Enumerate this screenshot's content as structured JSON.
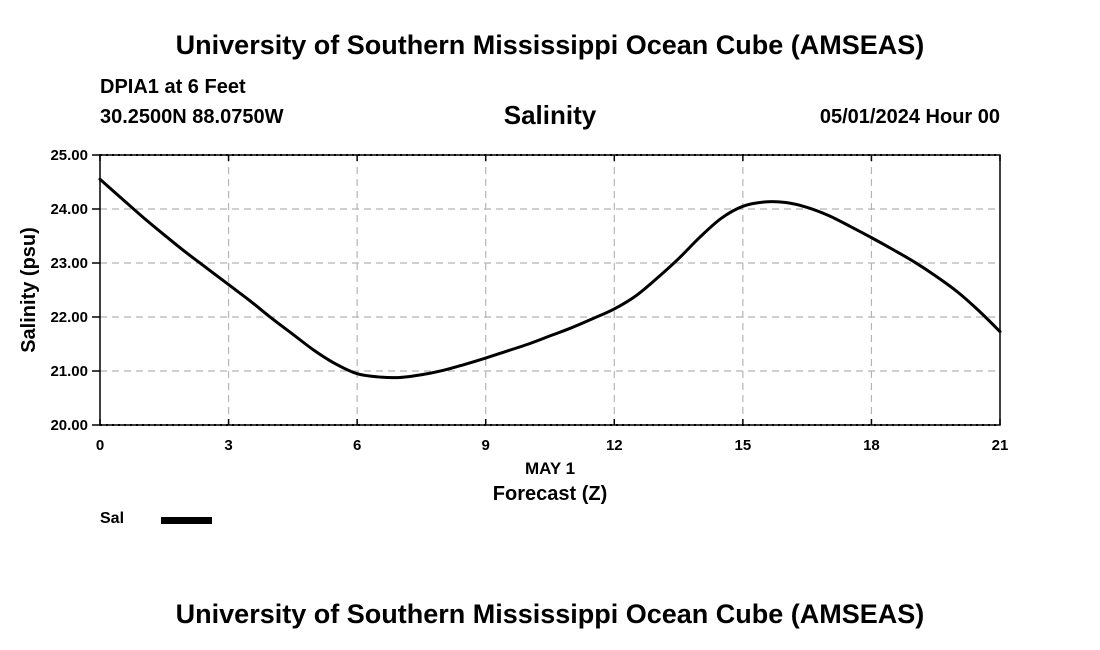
{
  "header": {
    "title": "University of Southern Mississippi Ocean Cube (AMSEAS)",
    "station": "DPIA1 at 6 Feet",
    "coordinates": "30.2500N  88.0750W",
    "parameter": "Salinity",
    "datetime": "05/01/2024 Hour 00"
  },
  "footer": {
    "title": "University of Southern Mississippi Ocean Cube (AMSEAS)"
  },
  "chart_data": {
    "type": "line",
    "title": "Salinity",
    "xlabel": "Forecast (Z)",
    "xlabel_date": "MAY 1",
    "ylabel": "Salinity (psu)",
    "xlim": [
      0,
      21
    ],
    "ylim": [
      20,
      25
    ],
    "xticks": [
      0,
      3,
      6,
      9,
      12,
      15,
      18,
      21
    ],
    "xtick_labels": [
      "0",
      "3",
      "6",
      "9",
      "12",
      "15",
      "18",
      "21"
    ],
    "yticks": [
      20,
      21,
      22,
      23,
      24,
      25
    ],
    "ytick_labels": [
      "20.00",
      "21.00",
      "22.00",
      "23.00",
      "24.00",
      "25.00"
    ],
    "grid": true,
    "legend_position": "bottom-left",
    "series": [
      {
        "name": "Sal",
        "color": "#000000",
        "x": [
          0,
          0.5,
          1,
          1.5,
          2,
          2.5,
          3,
          3.5,
          4,
          4.5,
          5,
          5.5,
          6,
          6.5,
          7,
          7.5,
          8,
          8.5,
          9,
          9.5,
          10,
          10.5,
          11,
          11.5,
          12,
          12.5,
          13,
          13.5,
          14,
          14.5,
          15,
          15.5,
          16,
          16.5,
          17,
          17.5,
          18,
          18.5,
          19,
          19.5,
          20,
          20.5,
          21
        ],
        "values": [
          24.55,
          24.2,
          23.85,
          23.52,
          23.2,
          22.9,
          22.6,
          22.3,
          21.98,
          21.68,
          21.38,
          21.13,
          20.95,
          20.89,
          20.88,
          20.93,
          21.01,
          21.12,
          21.24,
          21.37,
          21.5,
          21.65,
          21.8,
          21.97,
          22.15,
          22.39,
          22.72,
          23.08,
          23.48,
          23.83,
          24.05,
          24.13,
          24.12,
          24.03,
          23.88,
          23.68,
          23.47,
          23.25,
          23.02,
          22.76,
          22.47,
          22.12,
          21.73
        ]
      }
    ]
  }
}
